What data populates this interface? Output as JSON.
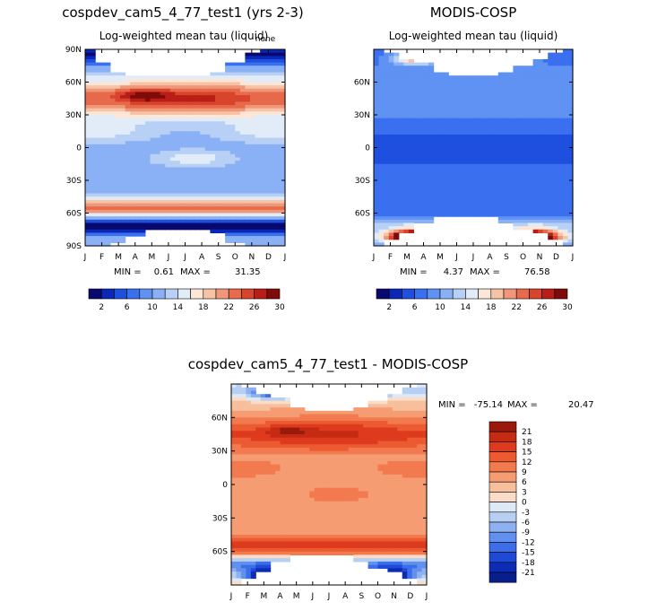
{
  "chart_data": [
    {
      "id": "panel1",
      "type": "heatmap",
      "title": "cospdev_cam5_4_77_test1 (yrs 2-3)",
      "subtitle": "Log-weighted mean tau (liquid)",
      "corner_label": "none",
      "x_ticks": [
        "J",
        "F",
        "M",
        "A",
        "M",
        "J",
        "J",
        "A",
        "S",
        "O",
        "N",
        "D",
        "J"
      ],
      "y_ticks": [
        "90N",
        "60N",
        "30N",
        "0",
        "30S",
        "60S",
        "90S"
      ],
      "ylim": [
        -90,
        90
      ],
      "stats": {
        "min_label": "MIN =",
        "min": "0.61",
        "max_label": "MAX =",
        "max": "31.35"
      },
      "colorbar_labels": [
        "2",
        "6",
        "10",
        "14",
        "18",
        "22",
        "26",
        "30"
      ]
    },
    {
      "id": "panel2",
      "type": "heatmap",
      "title": "MODIS-COSP",
      "subtitle": "Log-weighted mean tau (liquid)",
      "x_ticks": [
        "J",
        "F",
        "M",
        "A",
        "M",
        "J",
        "J",
        "A",
        "S",
        "O",
        "N",
        "D",
        "J"
      ],
      "y_ticks": [
        "60N",
        "30N",
        "0",
        "30S",
        "60S"
      ],
      "ylim": [
        -90,
        90
      ],
      "stats": {
        "min_label": "MIN =",
        "min": "4.37",
        "max_label": "MAX =",
        "max": "76.58"
      },
      "colorbar_labels": [
        "2",
        "6",
        "10",
        "14",
        "18",
        "22",
        "26",
        "30"
      ]
    },
    {
      "id": "panel3",
      "type": "heatmap",
      "title": "cospdev_cam5_4_77_test1 - MODIS-COSP",
      "x_ticks": [
        "J",
        "F",
        "M",
        "A",
        "M",
        "J",
        "J",
        "A",
        "S",
        "O",
        "N",
        "D",
        "J"
      ],
      "y_ticks": [
        "60N",
        "30N",
        "0",
        "30S",
        "60S"
      ],
      "ylim": [
        -90,
        90
      ],
      "stats": {
        "min_label": "MIN =",
        "min": "-75.14",
        "max_label": "MAX =",
        "max": "20.47"
      },
      "colorbar_labels": [
        "21",
        "18",
        "15",
        "12",
        "9",
        "6",
        "3",
        "0",
        "-3",
        "-6",
        "-9",
        "-12",
        "-15",
        "-18",
        "-21"
      ]
    }
  ],
  "colors": {
    "seq_palette": [
      "#08086e",
      "#0b27b5",
      "#1e4fde",
      "#3a70ef",
      "#5f92f2",
      "#8ab1f5",
      "#b8d0f6",
      "#e1ecf8",
      "#fce6d8",
      "#f6c3a6",
      "#f0977a",
      "#e66a4b",
      "#d8442c",
      "#b81e17",
      "#7e0a0a"
    ],
    "diff_palette": [
      "#991a0d",
      "#c42a14",
      "#de3a1e",
      "#ec5a31",
      "#f27a4e",
      "#f59c72",
      "#f7bf9c",
      "#fbdcc6",
      "#dde9f7",
      "#b6cff3",
      "#8eb1f1",
      "#6190ee",
      "#3b6ee8",
      "#1f4ad6",
      "#0d2cb6",
      "#081e8c"
    ]
  }
}
